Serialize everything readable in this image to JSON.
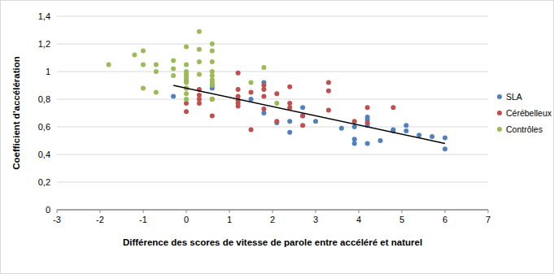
{
  "chart_data": {
    "type": "scatter",
    "x_label": "Différence des scores de vitesse de parole entre accéléré et naturel",
    "y_label": "Coefficient d'accélération",
    "xlim": [
      -3,
      7
    ],
    "xticks": [
      -3,
      -2,
      -1,
      0,
      1,
      2,
      3,
      4,
      5,
      6,
      7
    ],
    "ylim": [
      0,
      1.4
    ],
    "yticks": [
      0,
      {
        "value": 0.2,
        "label": "0,2"
      },
      {
        "value": 0.4,
        "label": "0,4"
      },
      {
        "value": 0.6,
        "label": "0,6"
      },
      {
        "value": 0.8,
        "label": "0,8"
      },
      1,
      {
        "value": 1.2,
        "label": "1,2"
      },
      {
        "value": 1.4,
        "label": "1,4"
      }
    ],
    "grid": true,
    "legend": "right",
    "series": [
      {
        "name": "SLA",
        "color": "#4f81bd",
        "x": [
          -0.3,
          0.6,
          0.6,
          1.5,
          1.8,
          1.8,
          2.1,
          2.4,
          2.4,
          2.7,
          2.7,
          3.0,
          3.6,
          3.9,
          3.9,
          3.9,
          4.2,
          4.2,
          4.2,
          4.2,
          4.5,
          4.8,
          4.8,
          5.1,
          5.1,
          5.4,
          5.7,
          6.0,
          6.0
        ],
        "values": [
          0.82,
          0.9,
          0.88,
          0.8,
          0.92,
          0.7,
          0.63,
          0.64,
          0.56,
          0.74,
          0.68,
          0.64,
          0.59,
          0.6,
          0.51,
          0.48,
          0.67,
          0.65,
          0.61,
          0.48,
          0.5,
          0.58,
          0.57,
          0.61,
          0.57,
          0.54,
          0.53,
          0.52,
          0.44
        ]
      },
      {
        "name": "Cérébelleux",
        "color": "#c0504d",
        "x": [
          0,
          0,
          0,
          0,
          0.3,
          0.3,
          0.3,
          0.3,
          0.6,
          0.6,
          1.2,
          1.2,
          1.2,
          1.2,
          1.2,
          1.2,
          1.5,
          1.5,
          1.8,
          1.8,
          1.8,
          1.8,
          2.1,
          2.1,
          2.4,
          2.4,
          2.4,
          2.7,
          2.7,
          3.3,
          3.3,
          3.3,
          3.9,
          4.2,
          4.2,
          4.8
        ],
        "values": [
          0.93,
          0.88,
          0.77,
          0.71,
          0.87,
          0.83,
          0.8,
          0.77,
          0.8,
          0.68,
          0.99,
          0.87,
          0.82,
          0.79,
          0.77,
          0.75,
          0.85,
          0.58,
          0.9,
          0.87,
          0.82,
          0.73,
          0.84,
          0.64,
          0.89,
          0.77,
          0.74,
          0.68,
          0.61,
          0.92,
          0.86,
          0.72,
          0.64,
          0.74,
          0.63,
          0.74
        ]
      },
      {
        "name": "Contrôles",
        "color": "#9bbb59",
        "x": [
          -1.8,
          -1.2,
          -1.0,
          -1.0,
          -1.0,
          -0.7,
          -0.7,
          -0.7,
          -0.3,
          -0.3,
          -0.3,
          0,
          0,
          0,
          0,
          0,
          0,
          0,
          0,
          0,
          0,
          0.3,
          0.3,
          0.3,
          0.3,
          0.6,
          0.6,
          0.6,
          0.6,
          0.6,
          0.6,
          0.6,
          0.6,
          0.6,
          1.5,
          1.8,
          2.1
        ],
        "values": [
          1.05,
          1.12,
          1.15,
          1.05,
          0.88,
          1.05,
          1.0,
          0.85,
          1.08,
          1.02,
          0.97,
          1.18,
          1.05,
          1.0,
          0.98,
          0.96,
          0.94,
          0.92,
          0.88,
          0.84,
          0.8,
          1.29,
          1.16,
          1.07,
          0.98,
          1.2,
          1.15,
          1.07,
          1.0,
          0.97,
          0.94,
          0.92,
          0.9,
          0.8,
          0.92,
          1.03,
          0.77
        ]
      },
      {
        "type": "line",
        "color": "#000000",
        "x": [
          -0.3,
          6.0
        ],
        "values": [
          0.9,
          0.48
        ]
      }
    ]
  }
}
